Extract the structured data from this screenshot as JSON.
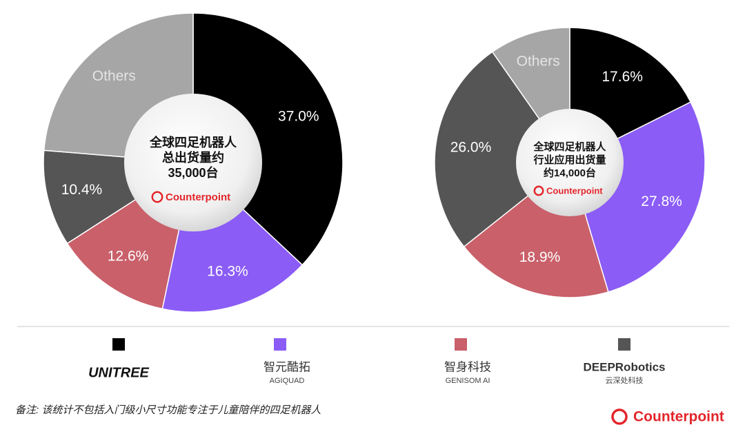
{
  "chart_data": [
    {
      "type": "pie",
      "categories": [
        null,
        null,
        null,
        null,
        "Others"
      ],
      "values": [
        37.0,
        16.3,
        12.6,
        10.4,
        23.7
      ],
      "value_labels": [
        "37.0%",
        "16.3%",
        "12.6%",
        "10.4%",
        null
      ],
      "colors": [
        "#000000",
        "#8b5cf6",
        "#c9606a",
        "#555555",
        "#a6a6a6"
      ],
      "center_text": [
        "全球四足机器人",
        "总出货量约",
        "35,000台"
      ],
      "center_logo": "Counterpoint"
    },
    {
      "type": "pie",
      "categories": [
        null,
        null,
        null,
        null,
        "Others"
      ],
      "values": [
        17.6,
        27.8,
        18.9,
        26.0,
        9.7
      ],
      "value_labels": [
        "17.6%",
        "27.8%",
        "18.9%",
        "26.0%",
        null
      ],
      "colors": [
        "#000000",
        "#8b5cf6",
        "#c9606a",
        "#555555",
        "#a6a6a6"
      ],
      "center_text": [
        "全球四足机器人",
        "行业应用出货量",
        "约14,000台"
      ],
      "center_logo": "Counterpoint"
    }
  ],
  "legend": [
    {
      "name": "UNITREE"
    },
    {
      "name": "智元酷拓",
      "subtitle": "AGIQUAD"
    },
    {
      "name": "智身科技",
      "subtitle": "GENISOM AI"
    },
    {
      "name": "DEEPRobotics",
      "subtitle": "云深处科技"
    }
  ],
  "note": "备注: 该统计不包括入门级小尺寸功能专注于儿童陪伴的四足机器人",
  "brand": "Counterpoint"
}
